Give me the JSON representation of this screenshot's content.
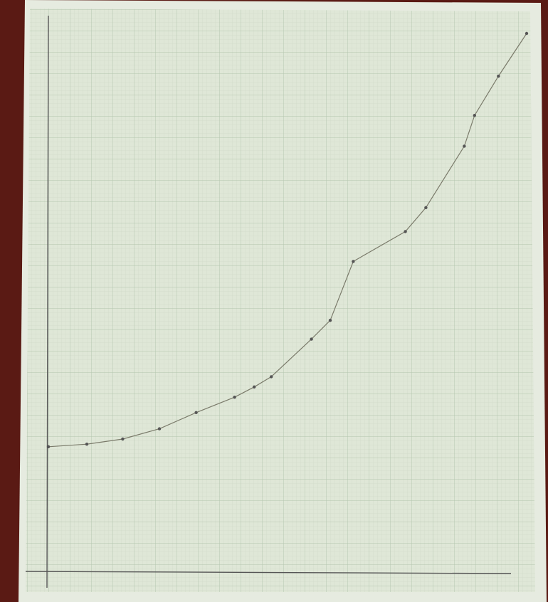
{
  "chart_data": {
    "type": "line",
    "x": [
      0,
      4.5,
      8.7,
      13,
      17.3,
      21.8,
      24.1,
      26.1,
      30.8,
      33,
      35.7,
      41.8,
      44.2,
      48.7,
      49.9,
      52.7,
      56
    ],
    "series": [
      {
        "color": "#7a7a6a",
        "values": [
          14.6,
          14.9,
          15.5,
          16.7,
          18.6,
          20.4,
          21.6,
          22.8,
          27.2,
          29.4,
          36.3,
          39.8,
          42.6,
          49.8,
          53.4,
          58,
          63
        ]
      }
    ],
    "xlim": [
      0,
      56
    ],
    "ylim": [
      0,
      64
    ]
  }
}
